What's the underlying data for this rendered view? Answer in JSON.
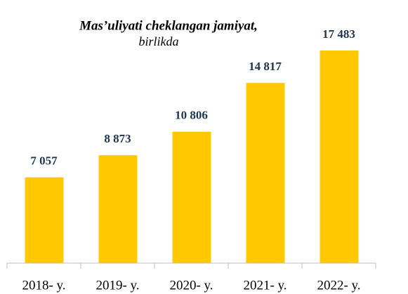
{
  "chart_data": {
    "type": "bar",
    "title": "Mas’uliyati cheklangan jamiyat,",
    "subtitle": "birlikda",
    "categories": [
      "2018- y.",
      "2019- y.",
      "2020- y.",
      "2021- y.",
      "2022- y."
    ],
    "values": [
      7057,
      8873,
      10806,
      14817,
      17483
    ],
    "value_labels": [
      "7 057",
      "8 873",
      "10 806",
      "14 817",
      "17 483"
    ],
    "color": "#ffc800"
  }
}
